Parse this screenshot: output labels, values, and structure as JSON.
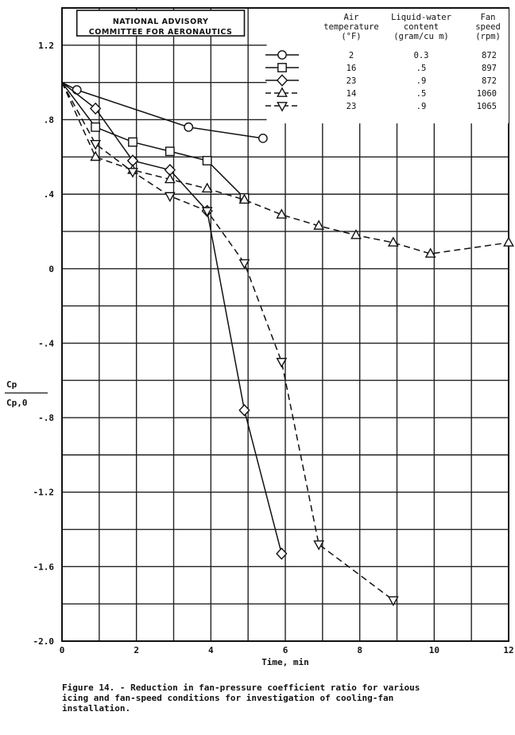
{
  "chart_data": {
    "type": "line",
    "xlabel": "Time, min",
    "ylabel_numerator": "Cp",
    "ylabel_denominator": "Cp,0",
    "xlim": [
      0,
      12
    ],
    "ylim": [
      -2.0,
      1.4
    ],
    "x_ticks": [
      "0",
      "2",
      "4",
      "6",
      "8",
      "10",
      "12"
    ],
    "y_ticks": [
      "1.2",
      ".8",
      ".4",
      "0",
      "-.4",
      "-.8",
      "-1.2",
      "-1.6",
      "-2.0"
    ],
    "grid": true,
    "legend_header": {
      "air_temperature": "Air temperature (°F)",
      "liquid_water": "Liquid-water content (gram/cu m)",
      "fan_speed": "Fan speed (rpm)"
    },
    "series": [
      {
        "temp": "2",
        "lwc": "0.3",
        "rpm": "872",
        "marker": "circle",
        "dashed": false,
        "x": [
          0,
          0.4,
          3.4,
          5.4
        ],
        "y": [
          1.0,
          0.96,
          0.76,
          0.7
        ]
      },
      {
        "temp": "16",
        "lwc": ".5",
        "rpm": "897",
        "marker": "square",
        "dashed": false,
        "x": [
          0,
          0.9,
          1.9,
          2.9,
          3.9,
          4.9
        ],
        "y": [
          1.0,
          0.76,
          0.68,
          0.63,
          0.58,
          0.38
        ]
      },
      {
        "temp": "23",
        "lwc": ".9",
        "rpm": "872",
        "marker": "diamond",
        "dashed": false,
        "x": [
          0,
          0.9,
          1.9,
          2.9,
          3.9,
          4.9,
          5.9
        ],
        "y": [
          1.0,
          0.86,
          0.58,
          0.53,
          0.31,
          -0.76,
          -1.53
        ]
      },
      {
        "temp": "14",
        "lwc": ".5",
        "rpm": "1060",
        "marker": "triangle-up",
        "dashed": true,
        "x": [
          0,
          0.9,
          1.9,
          2.9,
          3.9,
          4.9,
          5.9,
          6.9,
          7.9,
          8.9,
          9.9,
          12.0
        ],
        "y": [
          1.0,
          0.6,
          0.53,
          0.48,
          0.43,
          0.37,
          0.29,
          0.23,
          0.18,
          0.14,
          0.08,
          0.14
        ]
      },
      {
        "temp": "23",
        "lwc": ".9",
        "rpm": "1065",
        "marker": "triangle-down",
        "dashed": true,
        "x": [
          0,
          0.9,
          1.9,
          2.9,
          3.9,
          4.9,
          5.9,
          6.9,
          8.9
        ],
        "y": [
          1.0,
          0.67,
          0.52,
          0.39,
          0.31,
          0.03,
          -0.5,
          -1.48,
          -1.78
        ]
      }
    ]
  },
  "naca_box": {
    "line1": "NATIONAL ADVISORY",
    "line2": "COMMITTEE FOR AERONAUTICS"
  },
  "caption": "Figure 14. - Reduction in fan-pressure coefficient ratio for various\n icing and fan-speed conditions for investigation of cooling-fan\n installation."
}
